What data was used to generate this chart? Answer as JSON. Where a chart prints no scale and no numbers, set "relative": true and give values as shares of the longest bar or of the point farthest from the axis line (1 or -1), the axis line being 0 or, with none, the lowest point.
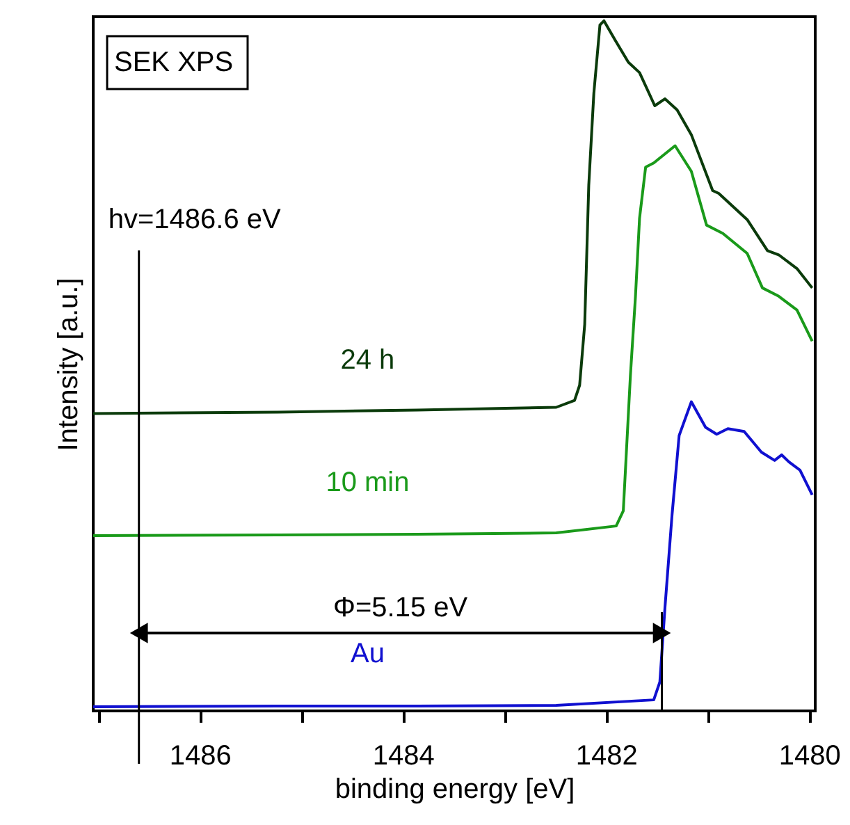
{
  "chart_data": {
    "type": "line",
    "xlabel": "binding energy [eV]",
    "ylabel": "Intensity [a.u.]",
    "relative": true,
    "tick_labels": "x",
    "grid": false,
    "marker": "none",
    "line_style": "solid",
    "xlim": [
      1487.05,
      1479.94
    ],
    "xticks": [
      {
        "value": 1487,
        "label": null
      },
      1486,
      {
        "value": 1485,
        "label": null
      },
      1484,
      {
        "value": 1483,
        "label": null
      },
      1482,
      {
        "value": 1481,
        "label": null
      },
      1480
    ],
    "annotations": [
      "SEK XPS",
      "Φ=5.15 eV"
    ],
    "ref_lines": [
      {
        "axis": "x",
        "value": 1486.6,
        "label": "hv=1486.6 eV"
      },
      {
        "axis": "x",
        "value": 1481.45
      }
    ],
    "series": [
      {
        "name": "24 h",
        "color": "#0b3b0b",
        "x": [
          1487.05,
          1485.23,
          1483.86,
          1482.49,
          1482.31,
          1482.26,
          1482.21,
          1482.17,
          1482.12,
          1482.06,
          1482.02,
          1481.91,
          1481.78,
          1481.67,
          1481.52,
          1481.42,
          1481.3,
          1481.16,
          1480.95,
          1480.89,
          1480.61,
          1480.41,
          1480.3,
          1480.12,
          1479.97
        ],
        "values": [
          0.431,
          0.433,
          0.436,
          0.44,
          0.45,
          0.472,
          0.56,
          0.762,
          0.895,
          0.994,
          1.0,
          0.972,
          0.94,
          0.925,
          0.877,
          0.887,
          0.871,
          0.835,
          0.754,
          0.75,
          0.712,
          0.667,
          0.661,
          0.641,
          0.613
        ]
      },
      {
        "name": "10 min",
        "color": "#1a9a1a",
        "x": [
          1487.05,
          1485.23,
          1483.86,
          1482.49,
          1481.9,
          1481.83,
          1481.76,
          1481.71,
          1481.67,
          1481.61,
          1481.53,
          1481.32,
          1481.16,
          1481.01,
          1480.85,
          1480.61,
          1480.46,
          1480.3,
          1480.12,
          1479.97
        ],
        "values": [
          0.254,
          0.255,
          0.256,
          0.258,
          0.268,
          0.29,
          0.486,
          0.601,
          0.714,
          0.788,
          0.794,
          0.819,
          0.782,
          0.704,
          0.692,
          0.663,
          0.613,
          0.601,
          0.581,
          0.536
        ]
      },
      {
        "name": "Au",
        "color": "#1010d0",
        "x": [
          1487.05,
          1485.23,
          1483.86,
          1482.49,
          1481.53,
          1481.47,
          1481.42,
          1481.35,
          1481.28,
          1481.16,
          1481.02,
          1480.91,
          1480.8,
          1480.64,
          1480.47,
          1480.34,
          1480.27,
          1480.2,
          1480.09,
          1479.97
        ],
        "values": [
          0.006,
          0.007,
          0.007,
          0.008,
          0.016,
          0.042,
          0.149,
          0.284,
          0.399,
          0.448,
          0.411,
          0.401,
          0.409,
          0.405,
          0.375,
          0.363,
          0.371,
          0.361,
          0.349,
          0.313
        ]
      }
    ]
  }
}
